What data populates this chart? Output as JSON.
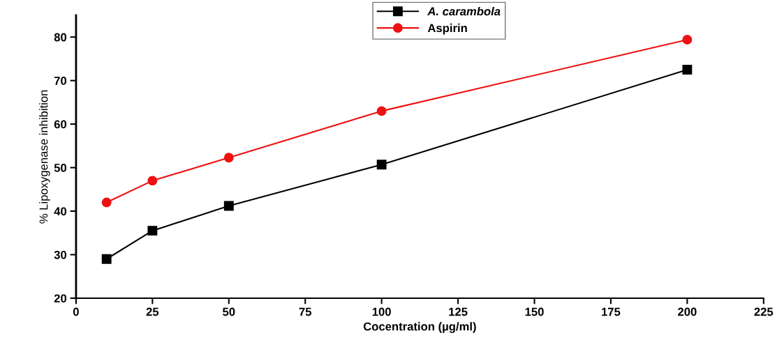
{
  "chart_data": {
    "type": "line",
    "xlabel": "Cocentration (µg/ml)",
    "ylabel": "% Lipoxygenase inhibition",
    "x": [
      10,
      25,
      50,
      100,
      200
    ],
    "series": [
      {
        "name": "A. carambola",
        "color": "#000000",
        "marker": "square",
        "values": [
          29,
          35.5,
          41.2,
          50.7,
          72.5
        ]
      },
      {
        "name": "Aspirin",
        "color": "#ee1111",
        "marker": "circle",
        "values": [
          42,
          47,
          52.3,
          63,
          79.4
        ]
      }
    ],
    "xlim": [
      0,
      225
    ],
    "xticks": [
      0,
      25,
      50,
      75,
      100,
      125,
      150,
      175,
      200,
      225
    ],
    "ylim": [
      20,
      85
    ],
    "yticks": [
      20,
      30,
      40,
      50,
      60,
      70,
      80
    ],
    "grid": false,
    "legend": "top"
  }
}
